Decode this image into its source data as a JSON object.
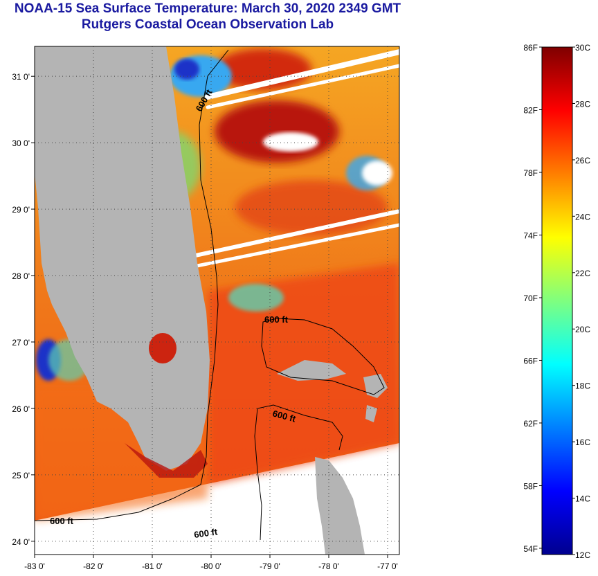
{
  "header": {
    "title": "NOAA-15 Sea Surface Temperature:  March 30, 2020 2349 GMT",
    "subtitle": "Rutgers Coastal Ocean Observation Lab"
  },
  "map": {
    "lon_range": [
      -83,
      -76.8
    ],
    "lat_range": [
      23.8,
      31.45
    ],
    "lon_ticks": [
      {
        "value": -83,
        "label": "-83 0'"
      },
      {
        "value": -82,
        "label": "-82 0'"
      },
      {
        "value": -81,
        "label": "-81 0'"
      },
      {
        "value": -80,
        "label": "-80 0'"
      },
      {
        "value": -79,
        "label": "-79 0'"
      },
      {
        "value": -78,
        "label": "-78 0'"
      },
      {
        "value": -77,
        "label": "-77 0'"
      }
    ],
    "lat_ticks": [
      {
        "value": 31,
        "label": "31 0'"
      },
      {
        "value": 30,
        "label": "30 0'"
      },
      {
        "value": 29,
        "label": "29 0'"
      },
      {
        "value": 28,
        "label": "28 0'"
      },
      {
        "value": 27,
        "label": "27 0'"
      },
      {
        "value": 26,
        "label": "26 0'"
      },
      {
        "value": 25,
        "label": "25 0'"
      },
      {
        "value": 24,
        "label": "24 0'"
      }
    ],
    "contour_labels": [
      "600 ft",
      "600 ft",
      "600 ft",
      "600 ft",
      "600 ft"
    ],
    "colors": {
      "land": "#b4b4b4",
      "gulf_warm": "#f27a18",
      "atlantic_warm": "#ee4a14",
      "hot": "#b8140e",
      "cool": "#38a8f0",
      "cold": "#1a30c8"
    }
  },
  "colorbar": {
    "min_c": 12,
    "max_c": 30,
    "fahrenheit_labels": [
      "86F",
      "82F",
      "78F",
      "74F",
      "70F",
      "66F",
      "62F",
      "58F",
      "54F"
    ],
    "celsius_labels": [
      "30C",
      "28C",
      "26C",
      "24C",
      "22C",
      "20C",
      "18C",
      "16C",
      "14C",
      "12C"
    ],
    "colors": [
      "#00008f",
      "#0000ff",
      "#007fff",
      "#00ffff",
      "#7fff7f",
      "#ffff00",
      "#ff7f00",
      "#ff0000",
      "#7f0000"
    ]
  }
}
